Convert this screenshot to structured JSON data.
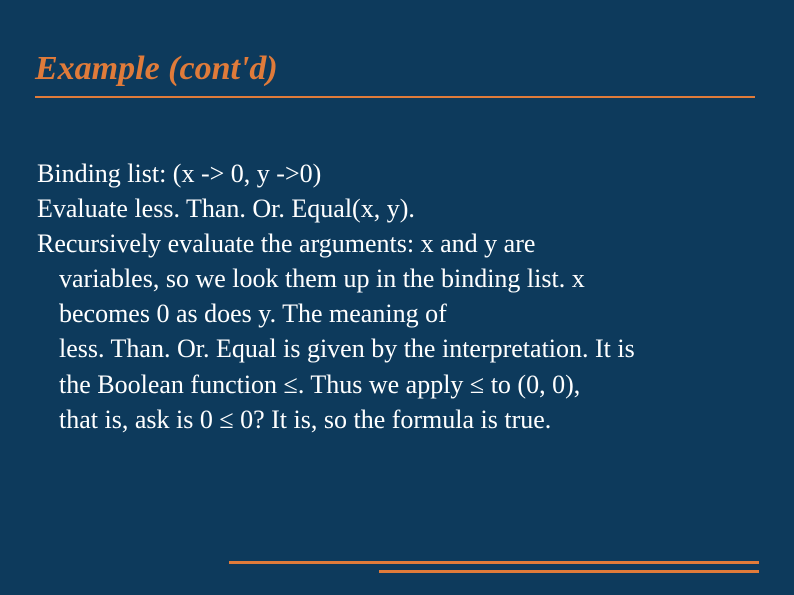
{
  "slide": {
    "title": "Example (cont'd)",
    "title_color": "#e07b3a",
    "title_fontsize": 34,
    "background_color": "#0d3a5c",
    "body_color": "#ffffff",
    "body_fontsize": 26,
    "underline_color": "#e07b3a",
    "lines": {
      "l1": "Binding list: (x -> 0, y ->0)",
      "l2": "Evaluate less. Than. Or. Equal(x, y).",
      "l3": "Recursively evaluate the arguments: x and y are",
      "l4": "variables, so we look them up in the binding list. x",
      "l5": "becomes 0 as does y. The meaning of",
      "l6": "less. Than. Or. Equal is given by the interpretation. It is",
      "l7": "the Boolean function ≤. Thus we apply ≤ to (0, 0),",
      "l8": "that is, ask is 0 ≤ 0? It is, so the formula is true."
    },
    "footer_bar_color": "#e07b3a"
  }
}
